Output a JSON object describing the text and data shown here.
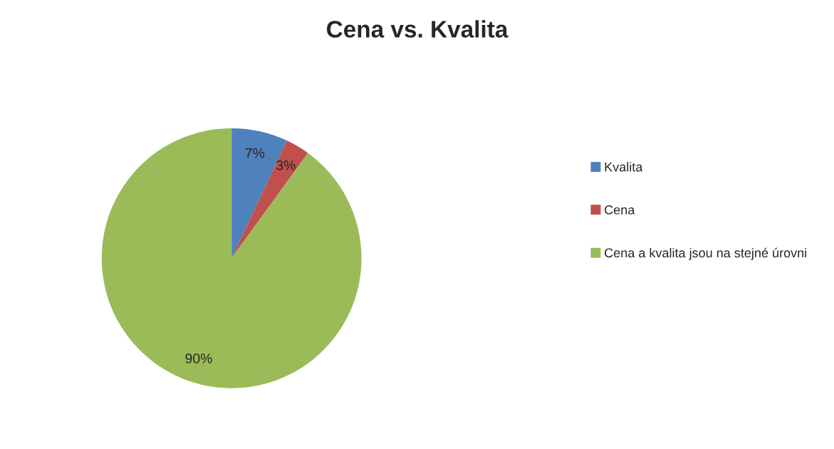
{
  "chart_data": {
    "type": "pie",
    "title": "Cena vs. Kvalita",
    "categories": [
      "Kvalita",
      "Cena",
      "Cena a kvalita jsou na stejné úrovni"
    ],
    "values": [
      7,
      3,
      90
    ],
    "value_labels": [
      "7%",
      "3%",
      "90%"
    ],
    "colors": [
      "#4f81bd",
      "#c0504d",
      "#9bbb59"
    ],
    "legend": "right"
  }
}
